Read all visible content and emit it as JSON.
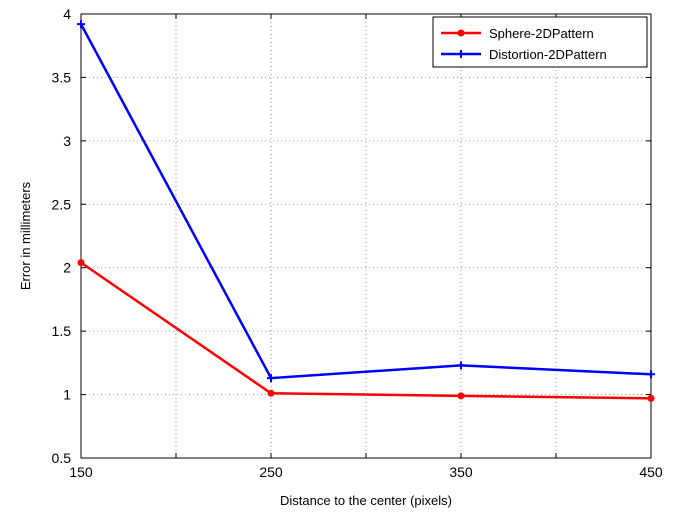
{
  "chart_data": {
    "type": "line",
    "x": [
      150,
      250,
      350,
      450
    ],
    "series": [
      {
        "name": "Sphere-2DPattern",
        "color": "#ff0000",
        "marker": "circle",
        "values": [
          2.04,
          1.01,
          0.99,
          0.97
        ]
      },
      {
        "name": "Distortion-2DPattern",
        "color": "#0000ff",
        "marker": "plus",
        "values": [
          3.92,
          1.13,
          1.23,
          1.16
        ]
      }
    ],
    "xlabel": "Distance to the center (pixels)",
    "ylabel": "Error in millimeters",
    "xlim": [
      150,
      450
    ],
    "ylim": [
      0.5,
      4
    ],
    "xticks": [
      150,
      200,
      250,
      300,
      350,
      400,
      450
    ],
    "xtick_labels": [
      "150",
      "",
      "250",
      "",
      "350",
      "",
      "450"
    ],
    "yticks": [
      0.5,
      1,
      1.5,
      2,
      2.5,
      3,
      3.5,
      4
    ],
    "ytick_labels": [
      "0.5",
      "1",
      "1.5",
      "2",
      "2.5",
      "3",
      "3.5",
      "4"
    ],
    "grid": true,
    "legend_position": "top-right"
  }
}
